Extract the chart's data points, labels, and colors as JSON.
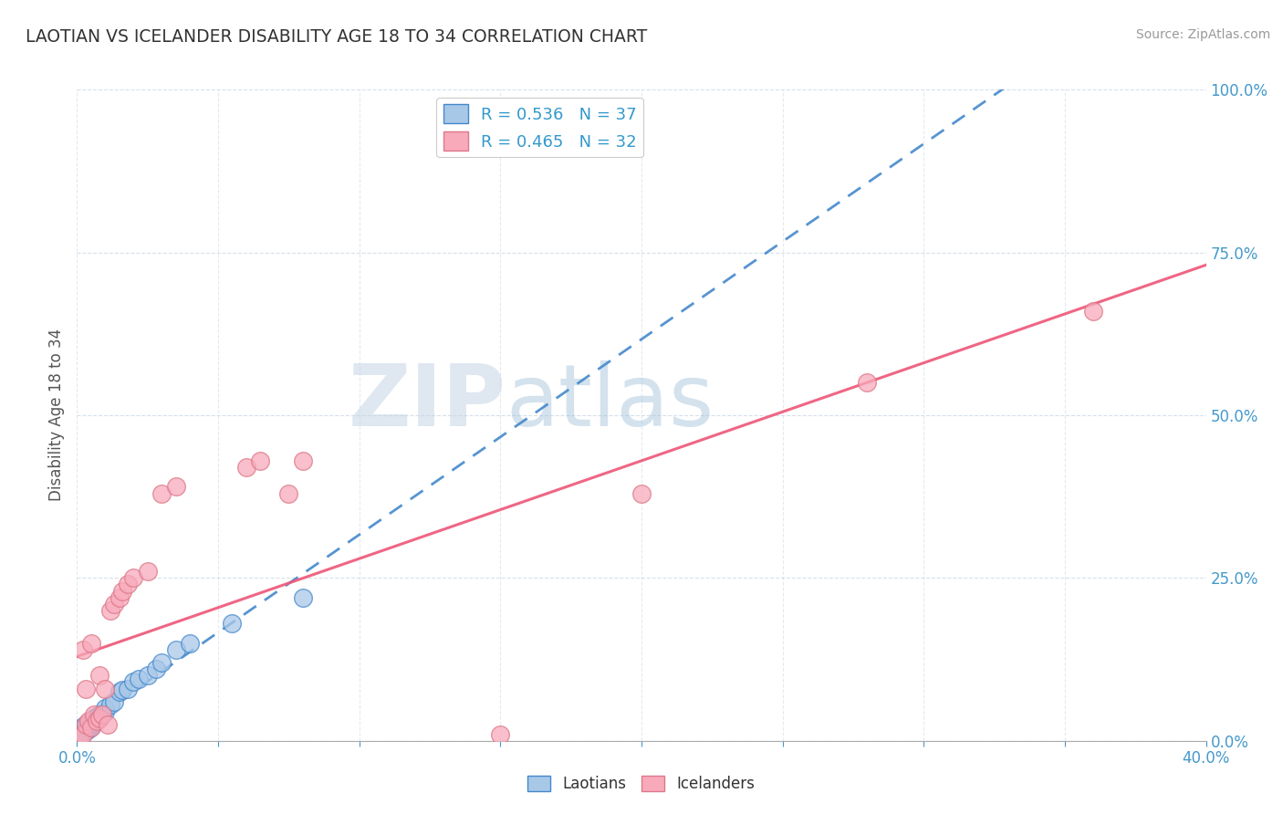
{
  "title": "LAOTIAN VS ICELANDER DISABILITY AGE 18 TO 34 CORRELATION CHART",
  "source": "Source: ZipAtlas.com",
  "ylabel": "Disability Age 18 to 34",
  "ylim": [
    0.0,
    1.0
  ],
  "xlim": [
    0.0,
    0.4
  ],
  "laotian_R": 0.536,
  "laotian_N": 37,
  "icelander_R": 0.465,
  "icelander_N": 32,
  "laotian_color": "#a8c8e8",
  "icelander_color": "#f8aabb",
  "laotian_line_color": "#4488cc",
  "icelander_line_color": "#ee5577",
  "watermark_color": "#c8d8e8",
  "laotian_x": [
    0.001,
    0.001,
    0.002,
    0.002,
    0.002,
    0.003,
    0.003,
    0.003,
    0.004,
    0.004,
    0.004,
    0.005,
    0.005,
    0.005,
    0.006,
    0.006,
    0.007,
    0.007,
    0.008,
    0.008,
    0.009,
    0.01,
    0.01,
    0.012,
    0.013,
    0.015,
    0.016,
    0.018,
    0.02,
    0.022,
    0.025,
    0.028,
    0.03,
    0.035,
    0.04,
    0.055,
    0.08
  ],
  "laotian_y": [
    0.01,
    0.015,
    0.012,
    0.018,
    0.022,
    0.02,
    0.025,
    0.015,
    0.018,
    0.025,
    0.02,
    0.022,
    0.03,
    0.025,
    0.028,
    0.035,
    0.032,
    0.038,
    0.04,
    0.035,
    0.042,
    0.045,
    0.05,
    0.055,
    0.06,
    0.075,
    0.078,
    0.08,
    0.09,
    0.095,
    0.1,
    0.11,
    0.12,
    0.14,
    0.15,
    0.18,
    0.22
  ],
  "icelander_x": [
    0.001,
    0.002,
    0.002,
    0.003,
    0.003,
    0.004,
    0.005,
    0.005,
    0.006,
    0.007,
    0.008,
    0.008,
    0.009,
    0.01,
    0.011,
    0.012,
    0.013,
    0.015,
    0.016,
    0.018,
    0.02,
    0.025,
    0.03,
    0.035,
    0.06,
    0.065,
    0.075,
    0.08,
    0.15,
    0.2,
    0.28,
    0.36
  ],
  "icelander_y": [
    0.005,
    0.01,
    0.14,
    0.025,
    0.08,
    0.03,
    0.02,
    0.15,
    0.04,
    0.03,
    0.035,
    0.1,
    0.04,
    0.08,
    0.025,
    0.2,
    0.21,
    0.22,
    0.23,
    0.24,
    0.25,
    0.26,
    0.38,
    0.39,
    0.42,
    0.43,
    0.38,
    0.43,
    0.01,
    0.38,
    0.55,
    0.66
  ]
}
